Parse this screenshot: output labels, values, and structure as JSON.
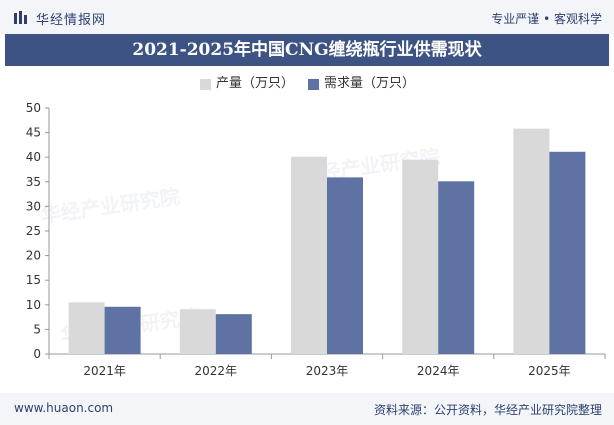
{
  "header": {
    "brand": "华经情报网",
    "tagline": "专业严谨 • 客观科学"
  },
  "footer": {
    "url": "www.huaon.com",
    "source": "资料来源：公开资料，华经产业研究院整理"
  },
  "colors": {
    "production": "#d9d9d9",
    "demand": "#5e72a4",
    "title_bg": "#3d5383",
    "brand_text": "#2e3f6e"
  },
  "chart_data": {
    "type": "bar",
    "title": "2021-2025年中国CNG缠绕瓶行业供需现状",
    "categories": [
      "2021年",
      "2022年",
      "2023年",
      "2024年",
      "2025年"
    ],
    "series": [
      {
        "name": "产量（万只）",
        "values": [
          10.5,
          9.1,
          40.1,
          39.5,
          45.8
        ]
      },
      {
        "name": "需求量（万只）",
        "values": [
          9.6,
          8.1,
          35.9,
          35.1,
          41.1
        ]
      }
    ],
    "xlabel": "",
    "ylabel": "",
    "ylim": [
      0,
      50
    ],
    "yticks": [
      0,
      5,
      10,
      15,
      20,
      25,
      30,
      35,
      40,
      45,
      50
    ],
    "grid": false,
    "legend_position": "top-center"
  }
}
